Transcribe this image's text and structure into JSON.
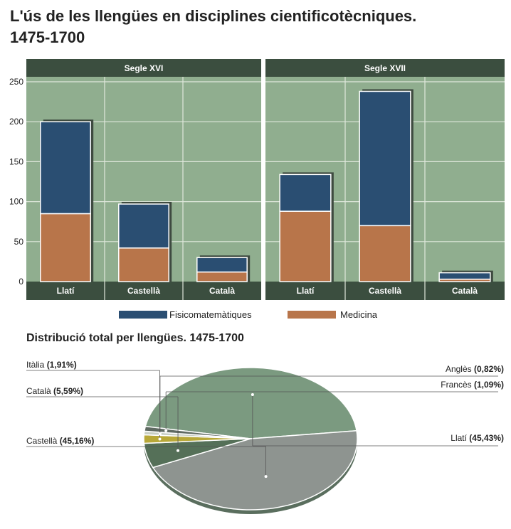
{
  "title_line1": "L'ús de les llengües en disciplines cientificotècniques.",
  "title_line2": "1475-1700",
  "chart_data": [
    {
      "type": "bar",
      "stacked": true,
      "panels": [
        {
          "label": "Segle XVI",
          "categories": [
            "Llatí",
            "Castellà",
            "Català"
          ],
          "series": [
            {
              "name": "Medicina",
              "values": [
                85,
                42,
                12
              ]
            },
            {
              "name": "Fisicomatemàtiques",
              "values": [
                115,
                55,
                18
              ]
            }
          ]
        },
        {
          "label": "Segle XVII",
          "categories": [
            "Llatí",
            "Castellà",
            "Català"
          ],
          "series": [
            {
              "name": "Medicina",
              "values": [
                88,
                70,
                3
              ]
            },
            {
              "name": "Fisicomatemàtiques",
              "values": [
                46,
                168,
                8
              ]
            }
          ]
        }
      ],
      "y_ticks": [
        0,
        50,
        100,
        150,
        200,
        250
      ],
      "ylim": [
        0,
        250
      ],
      "grid": true,
      "legend": [
        {
          "name": "Fisicomatemàtiques",
          "color": "#2a4e72"
        },
        {
          "name": "Medicina",
          "color": "#b8754a"
        }
      ],
      "legend_position": "bottom",
      "colors": {
        "background": "#90ae8f",
        "header": "#3b4e3f",
        "fisicomatematiques": "#2a4e72",
        "medicina": "#b8754a"
      }
    },
    {
      "type": "pie",
      "title": "Distribució total per llengües. 1475-1700",
      "slices": [
        {
          "name": "Llatí",
          "value": 45.43,
          "label": "(45,43%)",
          "color": "#7b9a80"
        },
        {
          "name": "Castellà",
          "value": 45.16,
          "label": "(45,16%)",
          "color": "#8e9490"
        },
        {
          "name": "Català",
          "value": 5.59,
          "label": "(5,59%)",
          "color": "#557058"
        },
        {
          "name": "Itàlia",
          "value": 1.91,
          "label": "(1,91%)",
          "color": "#b8a838"
        },
        {
          "name": "Anglès",
          "value": 0.82,
          "label": "(0,82%)",
          "color": "#c8cfc4"
        },
        {
          "name": "Francès",
          "value": 1.09,
          "label": "(1,09%)",
          "color": "#5f6a62"
        }
      ]
    }
  ]
}
